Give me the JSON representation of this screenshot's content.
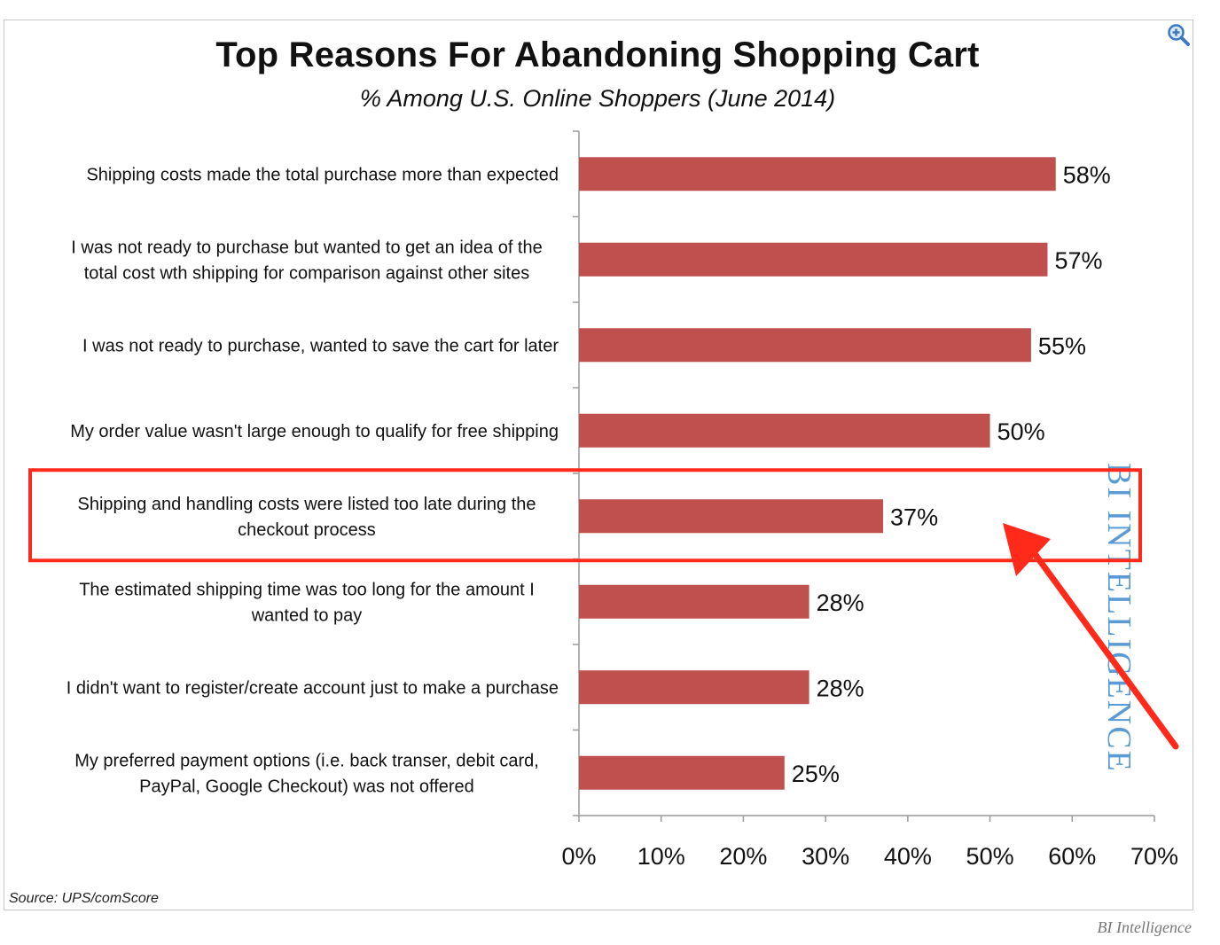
{
  "chart_data": {
    "type": "bar",
    "orientation": "horizontal",
    "title": "Top Reasons For Abandoning Shopping Cart",
    "subtitle": "% Among U.S. Online Shoppers (June 2014)",
    "categories": [
      [
        "Shipping costs made the total purchase more than expected"
      ],
      [
        "I was not ready to purchase but wanted to get an idea of the",
        "total cost wth shipping for comparison against other sites"
      ],
      [
        "I was not ready to purchase, wanted to save the cart for later"
      ],
      [
        "My order value wasn't large enough to qualify for free shipping"
      ],
      [
        "Shipping and handling costs were listed too late during the",
        "checkout process"
      ],
      [
        "The estimated shipping time was too long for the amount I",
        "wanted to pay"
      ],
      [
        "I didn't want to register/create account just to make a purchase"
      ],
      [
        "My preferred payment options (i.e. back transer, debit card,",
        "PayPal, Google Checkout) was not offered"
      ]
    ],
    "values": [
      58,
      57,
      55,
      50,
      37,
      28,
      28,
      25
    ],
    "value_labels": [
      "58%",
      "57%",
      "55%",
      "50%",
      "37%",
      "28%",
      "28%",
      "25%"
    ],
    "xlim": [
      0,
      70
    ],
    "xticks": [
      "0%",
      "10%",
      "20%",
      "30%",
      "40%",
      "50%",
      "60%",
      "70%"
    ],
    "bar_color": "#c0504d",
    "highlight_index": 4,
    "highlight_color": "#ff2a1a",
    "grid": false
  },
  "watermark": "BI INTELLIGENCE",
  "source": "Source: UPS/comScore",
  "credit": "BI Intelligence",
  "zoom_icon": "zoom-in-icon"
}
